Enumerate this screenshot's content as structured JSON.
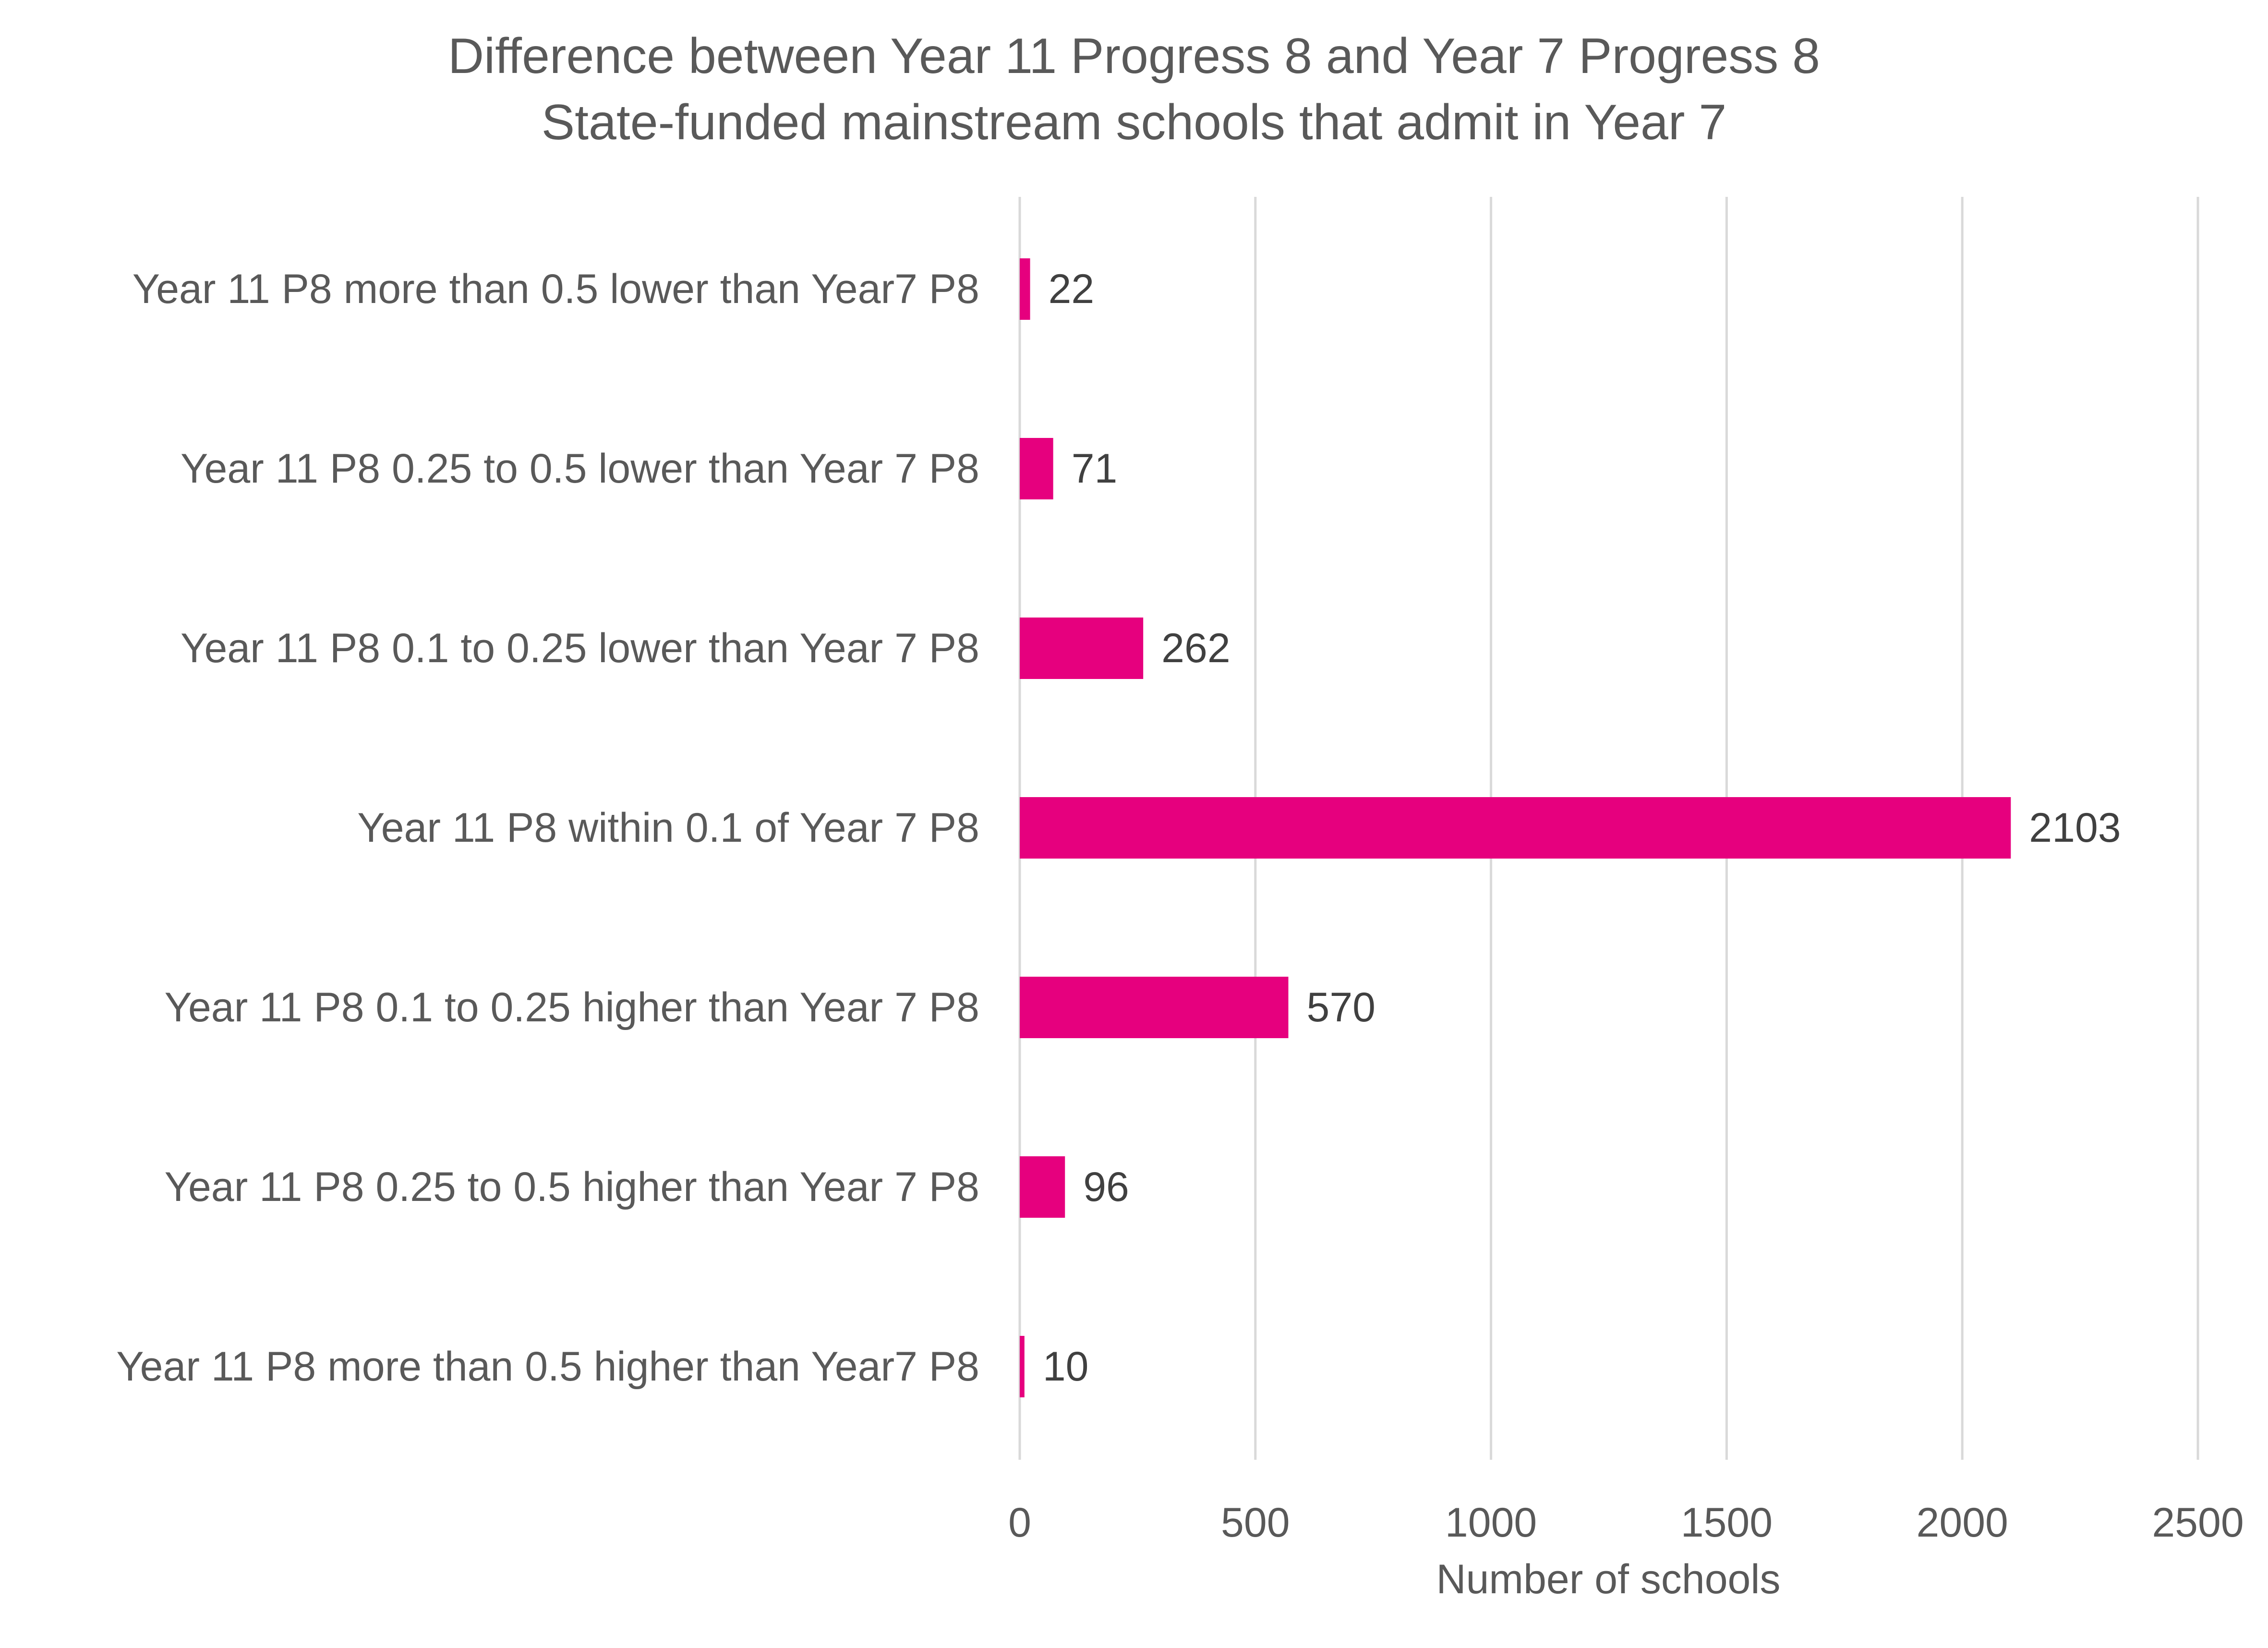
{
  "chart_data": {
    "type": "bar",
    "orientation": "horizontal",
    "title": "Difference between Year 11 Progress 8 and Year 7 Progress 8",
    "subtitle": "State-funded mainstream schools that admit in Year 7",
    "xlabel": "Number of schools",
    "ylabel": "",
    "categories": [
      "Year 11 P8 more than 0.5 lower than Year7 P8",
      "Year 11 P8 0.25 to 0.5 lower than Year 7 P8",
      "Year 11 P8 0.1 to 0.25 lower than Year 7 P8",
      "Year 11 P8 within 0.1 of Year 7 P8",
      "Year 11 P8 0.1 to 0.25 higher than Year 7 P8",
      "Year 11 P8 0.25 to 0.5 higher than Year 7 P8",
      "Year 11 P8 more than 0.5 higher than Year7 P8"
    ],
    "values": [
      22,
      71,
      262,
      2103,
      570,
      96,
      10
    ],
    "data_labels": [
      "22",
      "71",
      "262",
      "2103",
      "570",
      "96",
      "10"
    ],
    "xlim": [
      0,
      2500
    ],
    "xticks": [
      0,
      500,
      1000,
      1500,
      2000,
      2500
    ],
    "xtick_labels": [
      "0",
      "500",
      "1000",
      "1500",
      "2000",
      "2500"
    ],
    "grid": "vertical",
    "legend": "none",
    "bar_color": "#e6007e"
  }
}
